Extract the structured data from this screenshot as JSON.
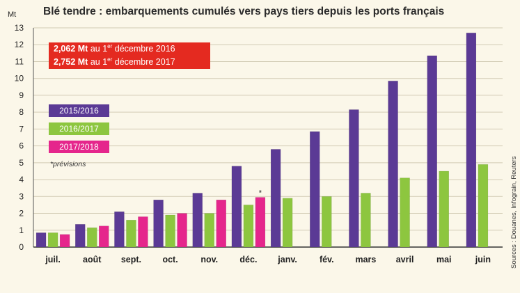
{
  "chart_data": {
    "type": "bar",
    "title": "Blé tendre : embarquements cumulés vers pays tiers depuis les ports français",
    "ylabel": "Mt",
    "xlabel": "",
    "ylim": [
      0,
      13
    ],
    "yticks": [
      0,
      1,
      2,
      3,
      4,
      5,
      6,
      7,
      8,
      9,
      10,
      11,
      12,
      13
    ],
    "grid": true,
    "legend_position": "left",
    "categories": [
      "juil.",
      "août",
      "sept.",
      "oct.",
      "nov.",
      "déc.",
      "janv.",
      "fév.",
      "mars",
      "avril",
      "mai",
      "juin"
    ],
    "series": [
      {
        "name": "2015/2016",
        "color": "#5b3a95",
        "values": [
          0.85,
          1.35,
          2.1,
          2.8,
          3.2,
          4.8,
          5.8,
          6.85,
          8.15,
          9.85,
          11.35,
          12.7
        ]
      },
      {
        "name": "2016/2017",
        "color": "#8dc63f",
        "values": [
          0.85,
          1.15,
          1.6,
          1.9,
          2.0,
          2.5,
          2.9,
          3.0,
          3.2,
          4.1,
          4.5,
          4.9
        ]
      },
      {
        "name": "2017/2018",
        "color": "#e5268c",
        "values": [
          0.75,
          1.25,
          1.8,
          2.0,
          2.8,
          2.95,
          null,
          null,
          null,
          null,
          null,
          null
        ]
      }
    ],
    "annotations": [
      {
        "text": "*",
        "category": "déc.",
        "series": "2017/2018"
      }
    ],
    "highlights": [
      {
        "value": "2,062 Mt",
        "text_before_sup": " au 1",
        "sup": "er",
        "text_after_sup": " décembre 2016"
      },
      {
        "value": "2,752 Mt",
        "text_before_sup": " au 1",
        "sup": "er",
        "text_after_sup": " décembre 2017"
      }
    ],
    "note": "*prévisions",
    "source": "Sources : Douanes, Infograin, Reuters"
  }
}
